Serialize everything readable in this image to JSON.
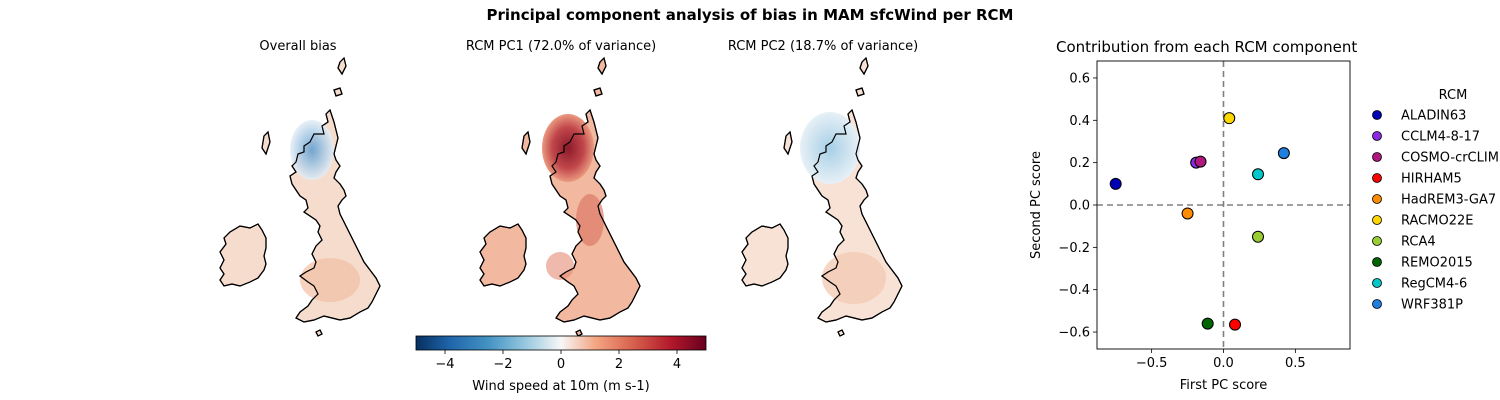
{
  "figure": {
    "title": "Principal component analysis of bias in MAM sfcWind per RCM"
  },
  "maps": [
    {
      "title": "Overall bias"
    },
    {
      "title": "RCM PC1 (72.0% of variance)"
    },
    {
      "title": "RCM PC2 (18.7% of variance)"
    }
  ],
  "colorbar": {
    "label": "Wind speed at 10m (m s-1)",
    "ticks": [
      "−4",
      "−2",
      "0",
      "2",
      "4"
    ],
    "range": [
      -5,
      5
    ],
    "colormap": "RdBu_r"
  },
  "chart_data": {
    "type": "scatter",
    "title": "Contribution from each RCM component",
    "xlabel": "First PC score",
    "ylabel": "Second PC score",
    "xlim": [
      -0.88,
      0.88
    ],
    "ylim": [
      -0.68,
      0.68
    ],
    "xticks": [
      -0.5,
      0.0,
      0.5
    ],
    "xtick_labels": [
      "−0.5",
      "0.0",
      "0.5"
    ],
    "yticks": [
      -0.6,
      -0.4,
      -0.2,
      0.0,
      0.2,
      0.4,
      0.6
    ],
    "ytick_labels": [
      "−0.6",
      "−0.4",
      "−0.2",
      "0.0",
      "0.2",
      "0.4",
      "0.6"
    ],
    "reference_lines": {
      "x": 0,
      "y": 0,
      "style": "dashed",
      "color": "#808080"
    },
    "legend": {
      "title": "RCM",
      "placement": "right, outside"
    },
    "series": [
      {
        "name": "ALADIN63",
        "color": "#0000b8",
        "x": -0.75,
        "y": 0.1
      },
      {
        "name": "CCLM4-8-17",
        "color": "#8a2be2",
        "x": -0.19,
        "y": 0.2
      },
      {
        "name": "COSMO-crCLIM",
        "color": "#b0177f",
        "x": -0.16,
        "y": 0.205
      },
      {
        "name": "HIRHAM5",
        "color": "#ff0000",
        "x": 0.08,
        "y": -0.565
      },
      {
        "name": "HadREM3-GA7",
        "color": "#ff8c00",
        "x": -0.25,
        "y": -0.04
      },
      {
        "name": "RACMO22E",
        "color": "#ffd700",
        "x": 0.04,
        "y": 0.41
      },
      {
        "name": "RCA4",
        "color": "#9acd32",
        "x": 0.24,
        "y": -0.15
      },
      {
        "name": "REMO2015",
        "color": "#006400",
        "x": -0.11,
        "y": -0.56
      },
      {
        "name": "RegCM4-6",
        "color": "#00c8c8",
        "x": 0.24,
        "y": 0.145
      },
      {
        "name": "WRF381P",
        "color": "#1e7fe0",
        "x": 0.42,
        "y": 0.245
      }
    ]
  }
}
